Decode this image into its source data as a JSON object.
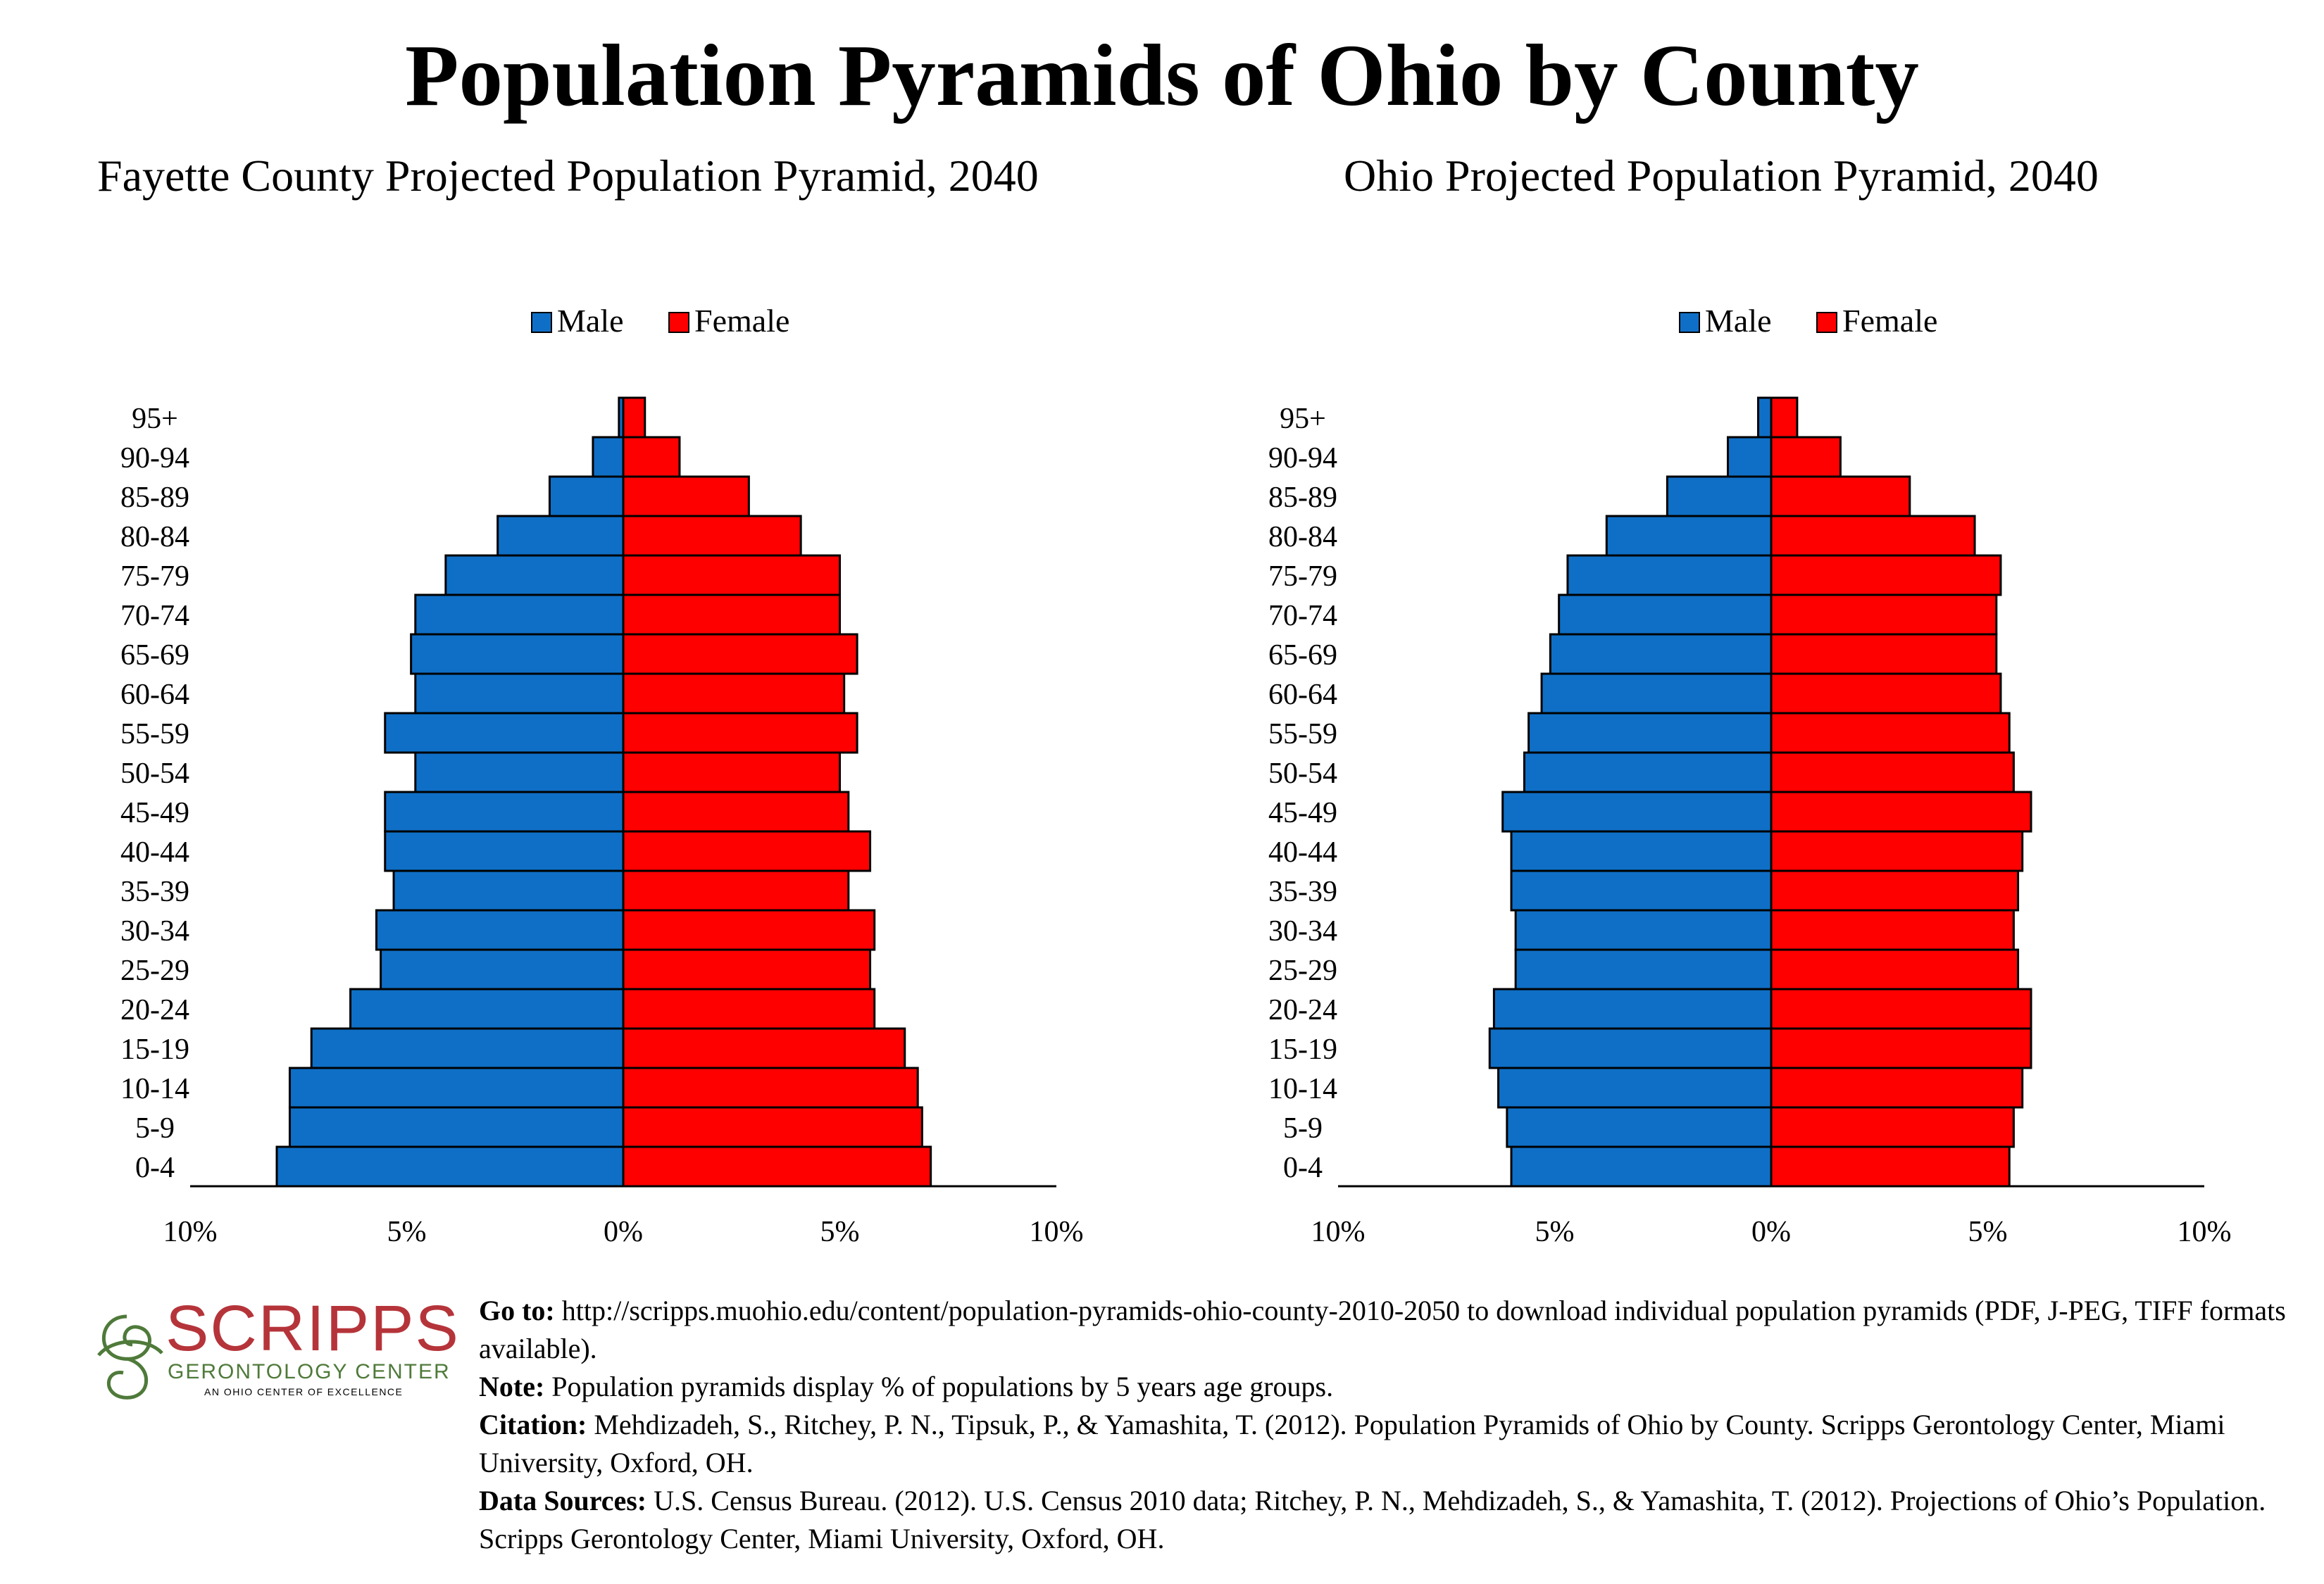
{
  "page": {
    "title": "Population Pyramids of Ohio by County"
  },
  "colors": {
    "male": "#0f6fc6",
    "female": "#ff0000",
    "outline": "#000000",
    "logo": "#b5343a",
    "logo_green": "#4f7a3a"
  },
  "chart_data": [
    {
      "type": "bar",
      "orientation": "horizontal-pyramid",
      "title": "Fayette County Projected Population Pyramid, 2040",
      "categories": [
        "0-4",
        "5-9",
        "10-14",
        "15-19",
        "20-24",
        "25-29",
        "30-34",
        "35-39",
        "40-44",
        "45-49",
        "50-54",
        "55-59",
        "60-64",
        "65-69",
        "70-74",
        "75-79",
        "80-84",
        "85-89",
        "90-94",
        "95+"
      ],
      "series": [
        {
          "name": "Male",
          "values": [
            8.0,
            7.7,
            7.7,
            7.2,
            6.3,
            5.6,
            5.7,
            5.3,
            5.5,
            5.5,
            4.8,
            5.5,
            4.8,
            4.9,
            4.8,
            4.1,
            2.9,
            1.7,
            0.7,
            0.1
          ]
        },
        {
          "name": "Female",
          "values": [
            7.1,
            6.9,
            6.8,
            6.5,
            5.8,
            5.7,
            5.8,
            5.2,
            5.7,
            5.2,
            5.0,
            5.4,
            5.1,
            5.4,
            5.0,
            5.0,
            4.1,
            2.9,
            1.3,
            0.5
          ]
        }
      ],
      "xlim": [
        -10,
        10
      ],
      "x_tick_labels": [
        "10%",
        "5%",
        "0%",
        "5%",
        "10%"
      ],
      "legend": [
        "Male",
        "Female"
      ],
      "legend_position": "top-center",
      "grid": false
    },
    {
      "type": "bar",
      "orientation": "horizontal-pyramid",
      "title": "Ohio Projected Population Pyramid, 2040",
      "categories": [
        "0-4",
        "5-9",
        "10-14",
        "15-19",
        "20-24",
        "25-29",
        "30-34",
        "35-39",
        "40-44",
        "45-49",
        "50-54",
        "55-59",
        "60-64",
        "65-69",
        "70-74",
        "75-79",
        "80-84",
        "85-89",
        "90-94",
        "95+"
      ],
      "series": [
        {
          "name": "Male",
          "values": [
            6.0,
            6.1,
            6.3,
            6.5,
            6.4,
            5.9,
            5.9,
            6.0,
            6.0,
            6.2,
            5.7,
            5.6,
            5.3,
            5.1,
            4.9,
            4.7,
            3.8,
            2.4,
            1.0,
            0.3
          ]
        },
        {
          "name": "Female",
          "values": [
            5.5,
            5.6,
            5.8,
            6.0,
            6.0,
            5.7,
            5.6,
            5.7,
            5.8,
            6.0,
            5.6,
            5.5,
            5.3,
            5.2,
            5.2,
            5.3,
            4.7,
            3.2,
            1.6,
            0.6
          ]
        }
      ],
      "xlim": [
        -10,
        10
      ],
      "x_tick_labels": [
        "10%",
        "5%",
        "0%",
        "5%",
        "10%"
      ],
      "legend": [
        "Male",
        "Female"
      ],
      "legend_position": "top-center",
      "grid": false
    }
  ],
  "footer": {
    "logo": {
      "name": "SCRIPPS",
      "line2": "GERONTOLOGY CENTER",
      "line3": "AN OHIO CENTER OF EXCELLENCE"
    },
    "goto_label": "Go to:",
    "goto_text": " http://scripps.muohio.edu/content/population-pyramids-ohio-county-2010-2050 to download individual population pyramids (PDF, J-PEG, TIFF formats available).",
    "note_label": "Note:",
    "note_text": " Population pyramids display % of populations by 5 years age groups.",
    "citation_label": "Citation:",
    "citation_text": " Mehdizadeh, S., Ritchey, P. N., Tipsuk, P., & Yamashita, T. (2012). Population Pyramids of Ohio by County. Scripps Gerontology Center, Miami University, Oxford, OH.",
    "sources_label": "Data Sources:",
    "sources_text": " U.S. Census Bureau. (2012). U.S. Census 2010 data; Ritchey, P. N., Mehdizadeh, S., & Yamashita, T. (2012). Projections of Ohio’s Population. Scripps Gerontology Center, Miami University, Oxford, OH."
  }
}
